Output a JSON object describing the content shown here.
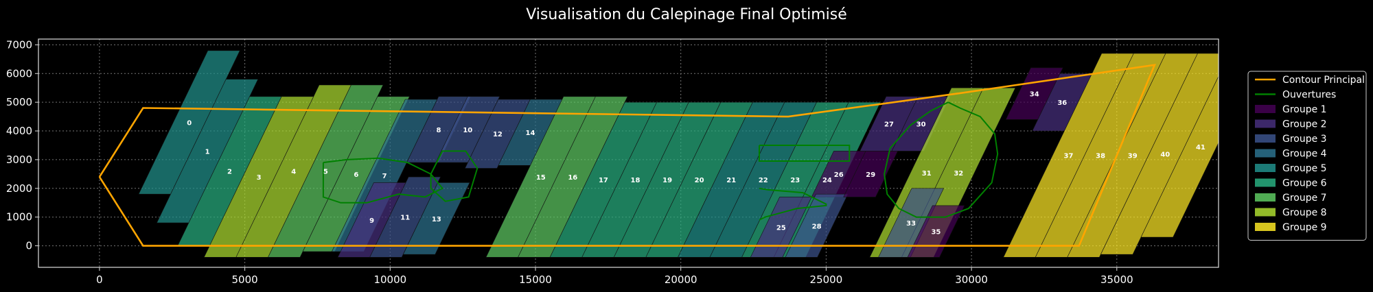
{
  "chart_data": {
    "type": "polygon-layout",
    "title": "Visualisation du Calepinage Final Optimisé",
    "xlabel": "",
    "ylabel": "",
    "xlim": [
      -2100,
      38500
    ],
    "ylim": [
      -750,
      7200
    ],
    "x_ticks": [
      0,
      5000,
      10000,
      15000,
      20000,
      25000,
      30000,
      35000
    ],
    "y_ticks": [
      0,
      1000,
      2000,
      3000,
      4000,
      5000,
      6000,
      7000
    ],
    "grid": true,
    "legend_position": "right",
    "legend": [
      {
        "label": "Contour Principal",
        "kind": "line",
        "color": "#ffa500"
      },
      {
        "label": "Ouvertures",
        "kind": "line",
        "color": "#008000"
      },
      {
        "label": "Groupe 1",
        "kind": "patch",
        "color": "#440154"
      },
      {
        "label": "Groupe 2",
        "kind": "patch",
        "color": "#472f7d"
      },
      {
        "label": "Groupe 3",
        "kind": "patch",
        "color": "#3b528b"
      },
      {
        "label": "Groupe 4",
        "kind": "patch",
        "color": "#2c728e"
      },
      {
        "label": "Groupe 5",
        "kind": "patch",
        "color": "#21918c"
      },
      {
        "label": "Groupe 6",
        "kind": "patch",
        "color": "#28ae80"
      },
      {
        "label": "Groupe 7",
        "kind": "patch",
        "color": "#5ec962"
      },
      {
        "label": "Groupe 8",
        "kind": "patch",
        "color": "#addc30"
      },
      {
        "label": "Groupe 9",
        "kind": "patch",
        "color": "#fde725"
      }
    ],
    "contour": [
      [
        0,
        2400
      ],
      [
        1500,
        4800
      ],
      [
        23700,
        4500
      ],
      [
        29500,
        5300
      ],
      [
        36300,
        6300
      ],
      [
        33700,
        0
      ],
      [
        1500,
        0
      ],
      [
        0,
        2400
      ]
    ],
    "openings": [
      [
        [
          7700,
          2900
        ],
        [
          8500,
          3000
        ],
        [
          9600,
          3050
        ],
        [
          10600,
          2900
        ],
        [
          11400,
          2500
        ],
        [
          11800,
          2000
        ],
        [
          11200,
          1700
        ],
        [
          10300,
          1800
        ],
        [
          9200,
          1500
        ],
        [
          8300,
          1500
        ],
        [
          7700,
          1700
        ],
        [
          7700,
          2900
        ]
      ],
      [
        [
          11400,
          2500
        ],
        [
          11800,
          3300
        ],
        [
          12600,
          3300
        ],
        [
          13000,
          2700
        ],
        [
          12700,
          1700
        ],
        [
          11900,
          1550
        ],
        [
          11400,
          2000
        ],
        [
          11400,
          2500
        ]
      ],
      [
        [
          22700,
          3500
        ],
        [
          25800,
          3500
        ],
        [
          25800,
          2950
        ],
        [
          22700,
          2950
        ],
        [
          22700,
          3500
        ]
      ],
      [
        [
          22700,
          2000
        ],
        [
          23000,
          1950
        ],
        [
          24200,
          1850
        ],
        [
          25000,
          1450
        ],
        [
          25000,
          1400
        ],
        [
          24000,
          1300
        ],
        [
          22900,
          1000
        ],
        [
          22700,
          900
        ]
      ],
      [
        [
          29200,
          5000
        ],
        [
          29600,
          4800
        ],
        [
          30300,
          4500
        ],
        [
          30800,
          3900
        ],
        [
          30900,
          3200
        ],
        [
          30700,
          2200
        ],
        [
          29900,
          1300
        ],
        [
          29100,
          1000
        ],
        [
          28100,
          1000
        ],
        [
          27500,
          1300
        ],
        [
          27100,
          1800
        ],
        [
          27000,
          2500
        ],
        [
          27200,
          3400
        ],
        [
          27900,
          4200
        ],
        [
          28600,
          4700
        ],
        [
          29200,
          5000
        ]
      ]
    ],
    "panels": [
      {
        "id": 0,
        "group": 5,
        "x0": 1300,
        "ytop": 6800,
        "ybot": 1800
      },
      {
        "id": 1,
        "group": 5,
        "x0": 2400,
        "ytop": 5800,
        "ybot": 800
      },
      {
        "id": 2,
        "group": 6,
        "x0": 3500,
        "ytop": 5200,
        "ybot": 0
      },
      {
        "id": 3,
        "group": 8,
        "x0": 4600,
        "ytop": 5200,
        "ybot": -400
      },
      {
        "id": 4,
        "group": 8,
        "x0": 5700,
        "ytop": 5600,
        "ybot": -400
      },
      {
        "id": 5,
        "group": 7,
        "x0": 6800,
        "ytop": 5600,
        "ybot": -400
      },
      {
        "id": 6,
        "group": 7,
        "x0": 7900,
        "ytop": 5200,
        "ybot": -200
      },
      {
        "id": 7,
        "group": 4,
        "x0": 8900,
        "ytop": 5100,
        "ybot": -200
      },
      {
        "id": 8,
        "group": 3,
        "x0": 10000,
        "ytop": 5200,
        "ybot": 2900
      },
      {
        "id": 9,
        "group": 2,
        "x0": 9200,
        "ytop": 2200,
        "ybot": -400
      },
      {
        "id": 10,
        "group": 3,
        "x0": 11000,
        "ytop": 5200,
        "ybot": 2900
      },
      {
        "id": 11,
        "group": 3,
        "x0": 10300,
        "ytop": 2400,
        "ybot": -400
      },
      {
        "id": 12,
        "group": 3,
        "x0": 12100,
        "ytop": 5100,
        "ybot": 2700
      },
      {
        "id": 13,
        "group": 4,
        "x0": 11400,
        "ytop": 2200,
        "ybot": -300
      },
      {
        "id": 14,
        "group": 4,
        "x0": 13200,
        "ytop": 5100,
        "ybot": 2800
      },
      {
        "id": 15,
        "group": 7,
        "x0": 14300,
        "ytop": 5200,
        "ybot": -400
      },
      {
        "id": 16,
        "group": 7,
        "x0": 15400,
        "ytop": 5200,
        "ybot": -400
      },
      {
        "id": 17,
        "group": 6,
        "x0": 16500,
        "ytop": 5000,
        "ybot": -400
      },
      {
        "id": 18,
        "group": 6,
        "x0": 17600,
        "ytop": 5000,
        "ybot": -400
      },
      {
        "id": 19,
        "group": 6,
        "x0": 18700,
        "ytop": 5000,
        "ybot": -400
      },
      {
        "id": 20,
        "group": 6,
        "x0": 19800,
        "ytop": 5000,
        "ybot": -400
      },
      {
        "id": 21,
        "group": 5,
        "x0": 20900,
        "ytop": 5000,
        "ybot": -400
      },
      {
        "id": 22,
        "group": 5,
        "x0": 22000,
        "ytop": 5000,
        "ybot": -400
      },
      {
        "id": 23,
        "group": 6,
        "x0": 23100,
        "ytop": 5000,
        "ybot": -400
      },
      {
        "id": 24,
        "group": 6,
        "x0": 24200,
        "ytop": 5000,
        "ybot": -400
      },
      {
        "id": 25,
        "group": 2,
        "x0": 23400,
        "ytop": 1700,
        "ybot": -400
      },
      {
        "id": 26,
        "group": 1,
        "x0": 24500,
        "ytop": 3300,
        "ybot": 1700
      },
      {
        "id": 27,
        "group": 2,
        "x0": 25400,
        "ytop": 5200,
        "ybot": 3300
      },
      {
        "id": 28,
        "group": 3,
        "x0": 24600,
        "ytop": 1800,
        "ybot": -400
      },
      {
        "id": 29,
        "group": 1,
        "x0": 25600,
        "ytop": 3300,
        "ybot": 1700
      },
      {
        "id": 30,
        "group": 2,
        "x0": 26500,
        "ytop": 5200,
        "ybot": 3300
      },
      {
        "id": 31,
        "group": 8,
        "x0": 27500,
        "ytop": 5500,
        "ybot": -400
      },
      {
        "id": 32,
        "group": 8,
        "x0": 28600,
        "ytop": 5500,
        "ybot": -400
      },
      {
        "id": 33,
        "group": 3,
        "x0": 27800,
        "ytop": 2000,
        "ybot": -400
      },
      {
        "id": 34,
        "group": 1,
        "x0": 29900,
        "ytop": 6200,
        "ybot": 4400
      },
      {
        "id": 35,
        "group": 1,
        "x0": 28800,
        "ytop": 1400,
        "ybot": -400
      },
      {
        "id": 36,
        "group": 2,
        "x0": 31000,
        "ytop": 6000,
        "ybot": 4000
      },
      {
        "id": 37,
        "group": 9,
        "x0": 32100,
        "ytop": 6700,
        "ybot": -400
      },
      {
        "id": 38,
        "group": 9,
        "x0": 33200,
        "ytop": 6700,
        "ybot": -400
      },
      {
        "id": 39,
        "group": 9,
        "x0": 34300,
        "ytop": 6700,
        "ybot": -400
      },
      {
        "id": 40,
        "group": 9,
        "x0": 35400,
        "ytop": 6700,
        "ybot": -300
      },
      {
        "id": 41,
        "group": 9,
        "x0": 36500,
        "ytop": 6600,
        "ybot": 300
      }
    ]
  }
}
